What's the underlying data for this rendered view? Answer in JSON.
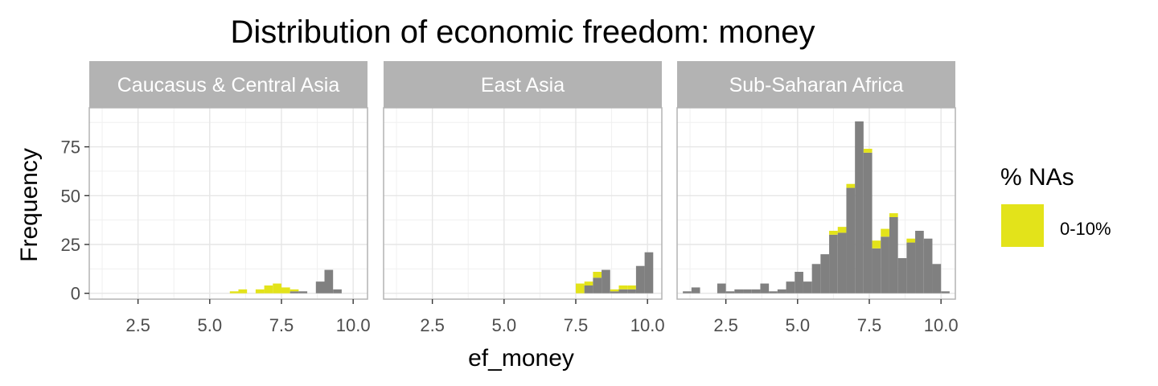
{
  "chart_data": {
    "type": "bar",
    "title": "Distribution of economic freedom: money",
    "xlabel": "ef_money",
    "ylabel": "Frequency",
    "xlim": [
      0.8,
      10.5
    ],
    "ylim": [
      -3,
      95
    ],
    "x_ticks": [
      2.5,
      5.0,
      7.5,
      10.0
    ],
    "x_tick_labels": [
      "2.5",
      "5.0",
      "7.5",
      "10.0"
    ],
    "y_ticks": [
      0,
      25,
      50,
      75
    ],
    "y_tick_labels": [
      "0",
      "25",
      "50",
      "75"
    ],
    "grid": true,
    "bin_width": 0.3,
    "legend": {
      "title": "% NAs",
      "position": "right",
      "entries": [
        {
          "label": "0-10%",
          "color": "#e3e31a"
        }
      ]
    },
    "colors": {
      "observed": "#808080",
      "na": "#e3e31a",
      "strip": "#b3b3b3",
      "grid": "#e6e6e6",
      "panel_border": "#b3b3b3"
    },
    "panels": [
      {
        "name": "Caucasus & Central Asia",
        "bins": [
          {
            "x": 5.85,
            "observed": 0,
            "na": 1
          },
          {
            "x": 6.15,
            "observed": 0,
            "na": 2
          },
          {
            "x": 6.75,
            "observed": 0,
            "na": 2
          },
          {
            "x": 7.05,
            "observed": 0,
            "na": 4
          },
          {
            "x": 7.35,
            "observed": 0,
            "na": 5
          },
          {
            "x": 7.65,
            "observed": 0,
            "na": 3
          },
          {
            "x": 7.95,
            "observed": 1,
            "na": 1
          },
          {
            "x": 8.25,
            "observed": 1,
            "na": 0
          },
          {
            "x": 8.85,
            "observed": 6,
            "na": 0
          },
          {
            "x": 9.15,
            "observed": 12,
            "na": 0
          },
          {
            "x": 9.45,
            "observed": 2,
            "na": 0
          }
        ]
      },
      {
        "name": "East Asia",
        "bins": [
          {
            "x": 7.65,
            "observed": 0,
            "na": 5
          },
          {
            "x": 7.95,
            "observed": 4,
            "na": 2
          },
          {
            "x": 8.25,
            "observed": 8,
            "na": 3
          },
          {
            "x": 8.55,
            "observed": 12,
            "na": 0
          },
          {
            "x": 8.85,
            "observed": 1,
            "na": 1
          },
          {
            "x": 9.15,
            "observed": 2,
            "na": 2
          },
          {
            "x": 9.45,
            "observed": 2,
            "na": 2
          },
          {
            "x": 9.75,
            "observed": 14,
            "na": 0
          },
          {
            "x": 10.05,
            "observed": 21,
            "na": 0
          }
        ]
      },
      {
        "name": "Sub-Saharan Africa",
        "bins": [
          {
            "x": 1.15,
            "observed": 1,
            "na": 0
          },
          {
            "x": 1.45,
            "observed": 3,
            "na": 0
          },
          {
            "x": 2.35,
            "observed": 5,
            "na": 0
          },
          {
            "x": 2.65,
            "observed": 1,
            "na": 0
          },
          {
            "x": 2.95,
            "observed": 2,
            "na": 0
          },
          {
            "x": 3.25,
            "observed": 2,
            "na": 0
          },
          {
            "x": 3.55,
            "observed": 2,
            "na": 0
          },
          {
            "x": 3.85,
            "observed": 5,
            "na": 0
          },
          {
            "x": 4.15,
            "observed": 1,
            "na": 0
          },
          {
            "x": 4.45,
            "observed": 2,
            "na": 0
          },
          {
            "x": 4.75,
            "observed": 6,
            "na": 0
          },
          {
            "x": 5.05,
            "observed": 11,
            "na": 0
          },
          {
            "x": 5.35,
            "observed": 6,
            "na": 0
          },
          {
            "x": 5.65,
            "observed": 15,
            "na": 0
          },
          {
            "x": 5.95,
            "observed": 20,
            "na": 0
          },
          {
            "x": 6.25,
            "observed": 30,
            "na": 2
          },
          {
            "x": 6.55,
            "observed": 31,
            "na": 3
          },
          {
            "x": 6.85,
            "observed": 54,
            "na": 2
          },
          {
            "x": 7.15,
            "observed": 88,
            "na": 0
          },
          {
            "x": 7.45,
            "observed": 72,
            "na": 2
          },
          {
            "x": 7.75,
            "observed": 23,
            "na": 4
          },
          {
            "x": 8.05,
            "observed": 29,
            "na": 4
          },
          {
            "x": 8.35,
            "observed": 39,
            "na": 2
          },
          {
            "x": 8.65,
            "observed": 18,
            "na": 0
          },
          {
            "x": 8.95,
            "observed": 26,
            "na": 2
          },
          {
            "x": 9.25,
            "observed": 32,
            "na": 0
          },
          {
            "x": 9.55,
            "observed": 28,
            "na": 0
          },
          {
            "x": 9.85,
            "observed": 15,
            "na": 0
          },
          {
            "x": 10.15,
            "observed": 1,
            "na": 0
          }
        ]
      }
    ]
  }
}
